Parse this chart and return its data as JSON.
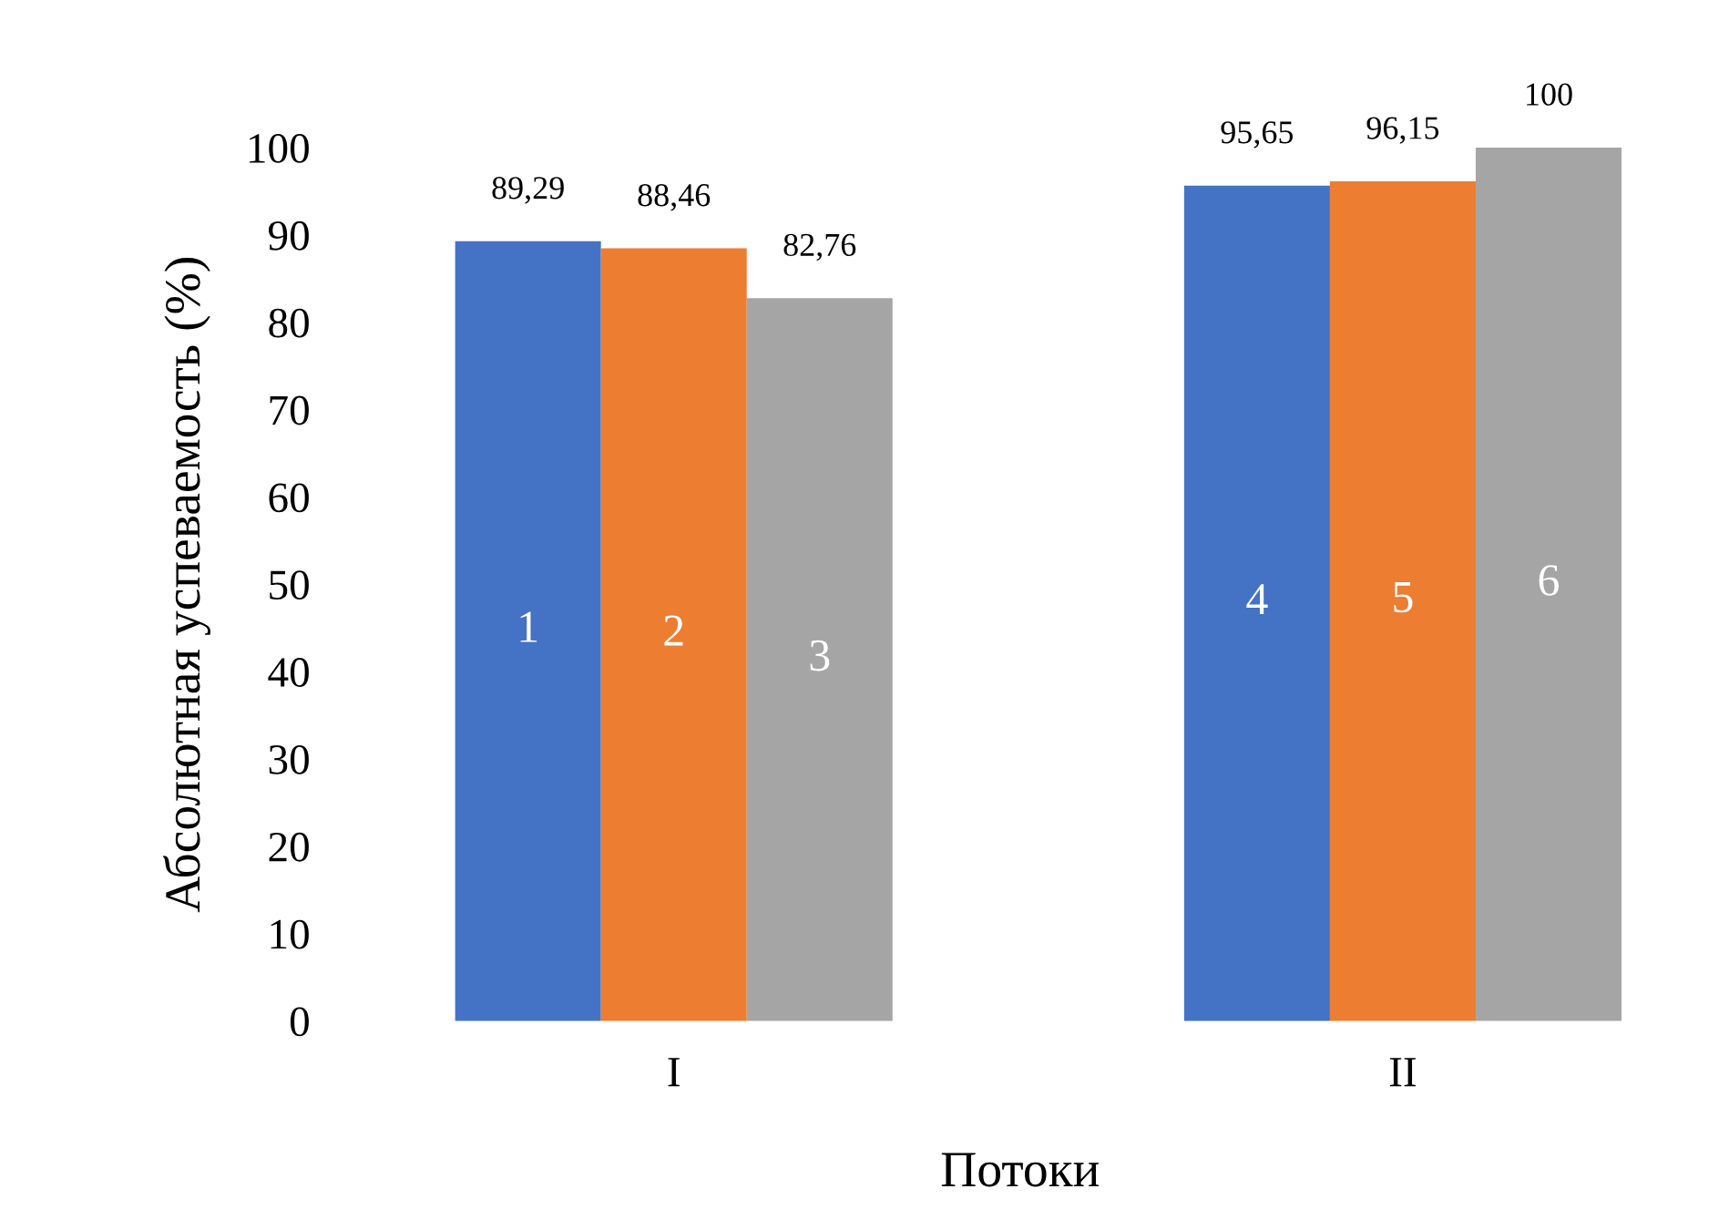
{
  "chart_data": {
    "type": "bar",
    "xlabel": "Потоки",
    "ylabel": "Абсолютная успеваемость (%)",
    "categories": [
      "I",
      "II"
    ],
    "series": [
      {
        "color": "#4472c4",
        "values": [
          89.29,
          95.65
        ],
        "value_labels": [
          "89,29",
          "95,65"
        ]
      },
      {
        "color": "#ed7d31",
        "values": [
          88.46,
          96.15
        ],
        "value_labels": [
          "88,46",
          "96,15"
        ]
      },
      {
        "color": "#a5a5a5",
        "values": [
          82.76,
          100
        ],
        "value_labels": [
          "82,76",
          "100"
        ]
      }
    ],
    "ylim": [
      0,
      100
    ],
    "yticks": [
      0,
      10,
      20,
      30,
      40,
      50,
      60,
      70,
      80,
      90,
      100
    ],
    "grid": false,
    "annotations": [
      "1",
      "2",
      "3",
      "4",
      "5",
      "6"
    ]
  }
}
